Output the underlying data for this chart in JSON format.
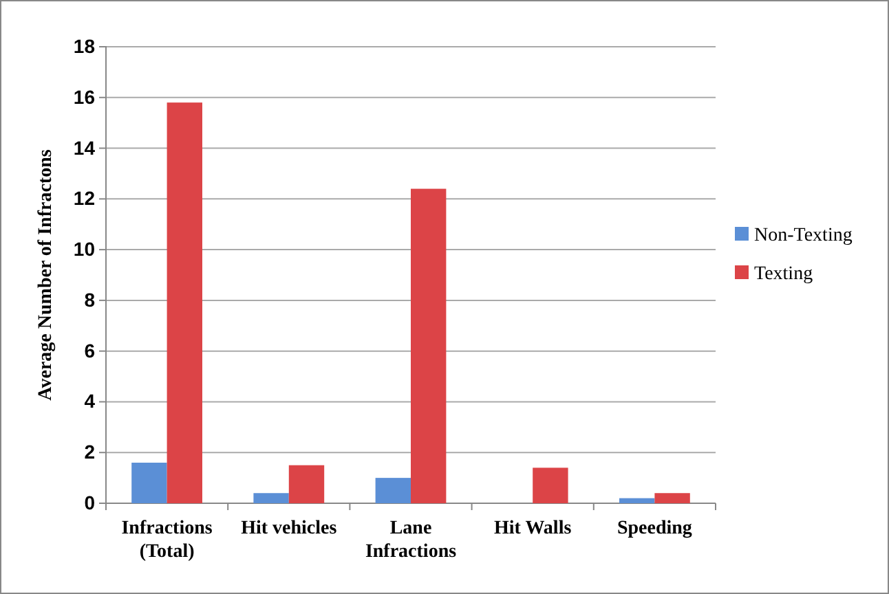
{
  "chart_data": {
    "type": "bar",
    "ylabel": "Average Number of Infractons",
    "categories": [
      "Infractions (Total)",
      "Hit vehicles",
      "Lane Infractions",
      "Hit Walls",
      "Speeding"
    ],
    "series": [
      {
        "name": "Non-Texting",
        "color": "#5b8fd6",
        "values": [
          1.6,
          0.4,
          1.0,
          0,
          0.2
        ]
      },
      {
        "name": "Texting",
        "color": "#dc4447",
        "values": [
          15.8,
          1.5,
          12.4,
          1.4,
          0.4
        ]
      }
    ],
    "ylim": [
      0,
      18
    ],
    "yticks": [
      0,
      2,
      4,
      6,
      8,
      10,
      12,
      14,
      16,
      18
    ],
    "grid": "y",
    "legend": "right"
  }
}
